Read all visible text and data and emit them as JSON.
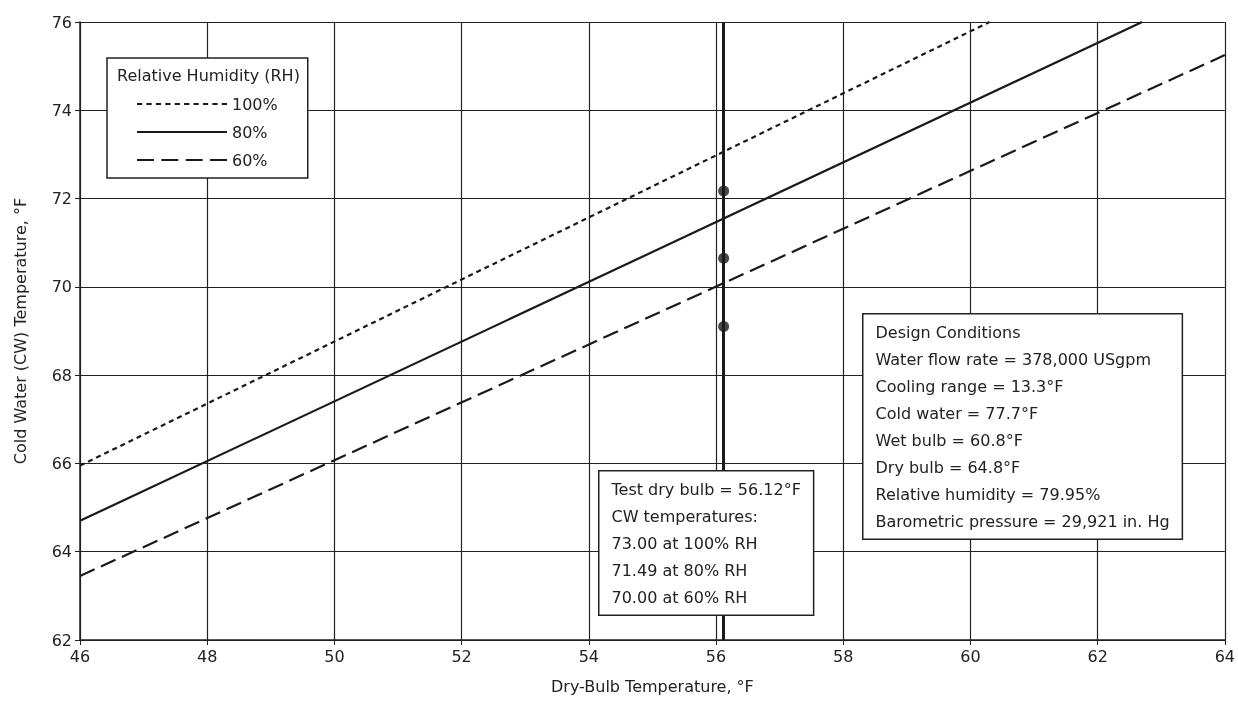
{
  "chart_data": {
    "type": "line",
    "xlabel": "Dry-Bulb Temperature, °F",
    "ylabel": "Cold Water (CW) Temperature, °F",
    "legend_title": "Relative Humidity (RH)",
    "legend": "top left",
    "grid": true,
    "xlim": [
      46,
      64
    ],
    "xticks": [
      46,
      48,
      50,
      52,
      54,
      56,
      58,
      60,
      62,
      64
    ],
    "ylim": [
      62,
      76
    ],
    "yticks": [
      62,
      64,
      66,
      68,
      70,
      72,
      74,
      76
    ],
    "series": [
      {
        "name": "100%",
        "color": "#1a1a1a",
        "line_style": "dotted",
        "marker": "none",
        "x": [
          46,
          60.3
        ],
        "values": [
          65.95,
          76
        ]
      },
      {
        "name": "80%",
        "color": "#1a1a1a",
        "line_style": "solid",
        "marker": "none",
        "x": [
          46,
          62.7
        ],
        "values": [
          64.7,
          76
        ]
      },
      {
        "name": "60%",
        "color": "#1a1a1a",
        "line_style": "dashed",
        "marker": "none",
        "x": [
          46,
          64
        ],
        "values": [
          63.45,
          75.25
        ]
      },
      {
        "type": "scatter",
        "color": "#1a1a1a",
        "marker": "circle",
        "x": [
          56.12,
          56.12,
          56.12
        ],
        "values": [
          72.17,
          70.65,
          69.1
        ]
      }
    ],
    "ref_lines": [
      {
        "axis": "x",
        "value": 56.12,
        "color": "#1a1a1a"
      }
    ],
    "annotations": [
      "Test dry bulb = 56.12°F\nCW temperatures:\n73.00 at 100% RH\n71.49 at 80% RH\n70.00 at 60% RH",
      "Design Conditions\nWater flow rate = 378,000 USgpm\nCooling range = 13.3°F\nCold water = 77.7°F\nWet bulb = 60.8°F\nDry bulb = 64.8°F\nRelative humidity = 79.95%\nBarometric pressure = 29,921 in. Hg"
    ]
  }
}
